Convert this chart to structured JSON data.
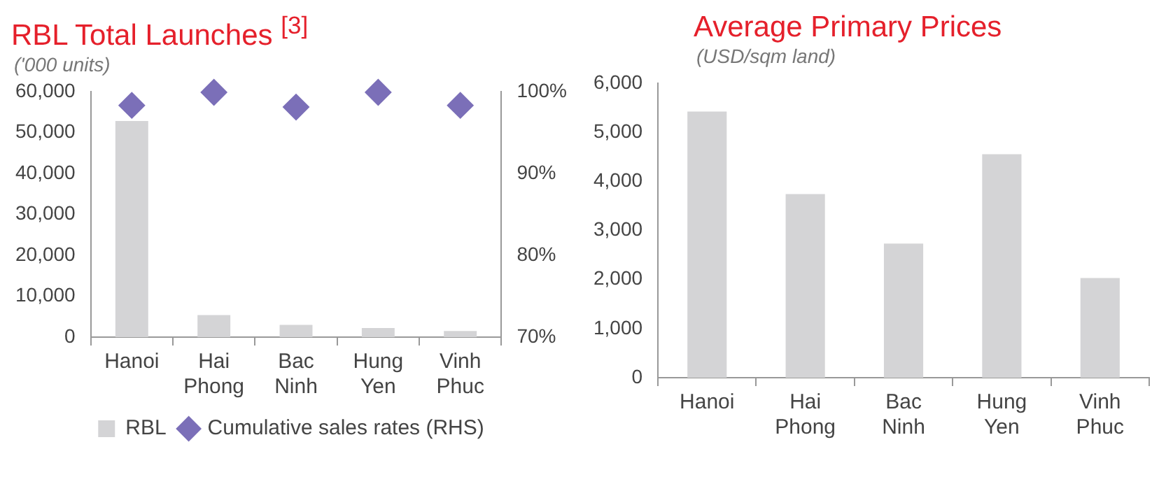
{
  "chart_data": [
    {
      "type": "bar",
      "title": "RBL Total Launches $^{[3]}$",
      "subtitle": "('000 units)",
      "categories": [
        "Hanoi",
        "Hai Phong",
        "Bac Ninh",
        "Hung Yen",
        "Vinh Phuc"
      ],
      "series": [
        {
          "name": "RBL",
          "type": "bar",
          "color": "#d4d4d6",
          "values": [
            52800,
            5400,
            3000,
            2200,
            1500
          ]
        },
        {
          "name": "Cumulative sales rates (RHS)",
          "type": "scatter",
          "axis": "y2",
          "marker": "diamond",
          "color": "#7b6fb8",
          "values": [
            98.3,
            99.9,
            98.1,
            99.9,
            98.3
          ]
        }
      ],
      "ylim": [
        0,
        60000
      ],
      "yticks": [
        0,
        {
          "value": 10000,
          "label": "10,000"
        },
        {
          "value": 20000,
          "label": "20,000"
        },
        {
          "value": 30000,
          "label": "30,000"
        },
        {
          "value": 40000,
          "label": "40,000"
        },
        {
          "value": 50000,
          "label": "50,000"
        },
        {
          "value": 60000,
          "label": "60,000"
        }
      ],
      "y2lim": [
        70,
        100
      ],
      "y2ticks": [
        {
          "value": 70,
          "label": "70%"
        },
        {
          "value": 80,
          "label": "80%"
        },
        {
          "value": 90,
          "label": "90%"
        },
        {
          "value": 100,
          "label": "100%"
        }
      ],
      "legend": "bottom"
    },
    {
      "type": "bar",
      "title": "Average Primary Prices",
      "subtitle": "(USD/sqm land)",
      "categories": [
        "Hanoi",
        "Hai Phong",
        "Bac Ninh",
        "Hung Yen",
        "Vinh Phuc"
      ],
      "values": [
        5420,
        3740,
        2730,
        4550,
        2030
      ],
      "color": "#d4d4d6",
      "ylim": [
        0,
        6000
      ],
      "yticks": [
        0,
        {
          "value": 1000,
          "label": "1,000"
        },
        {
          "value": 2000,
          "label": "2,000"
        },
        {
          "value": 3000,
          "label": "3,000"
        },
        {
          "value": 4000,
          "label": "4,000"
        },
        {
          "value": 5000,
          "label": "5,000"
        },
        {
          "value": 6000,
          "label": "6,000"
        }
      ]
    }
  ]
}
